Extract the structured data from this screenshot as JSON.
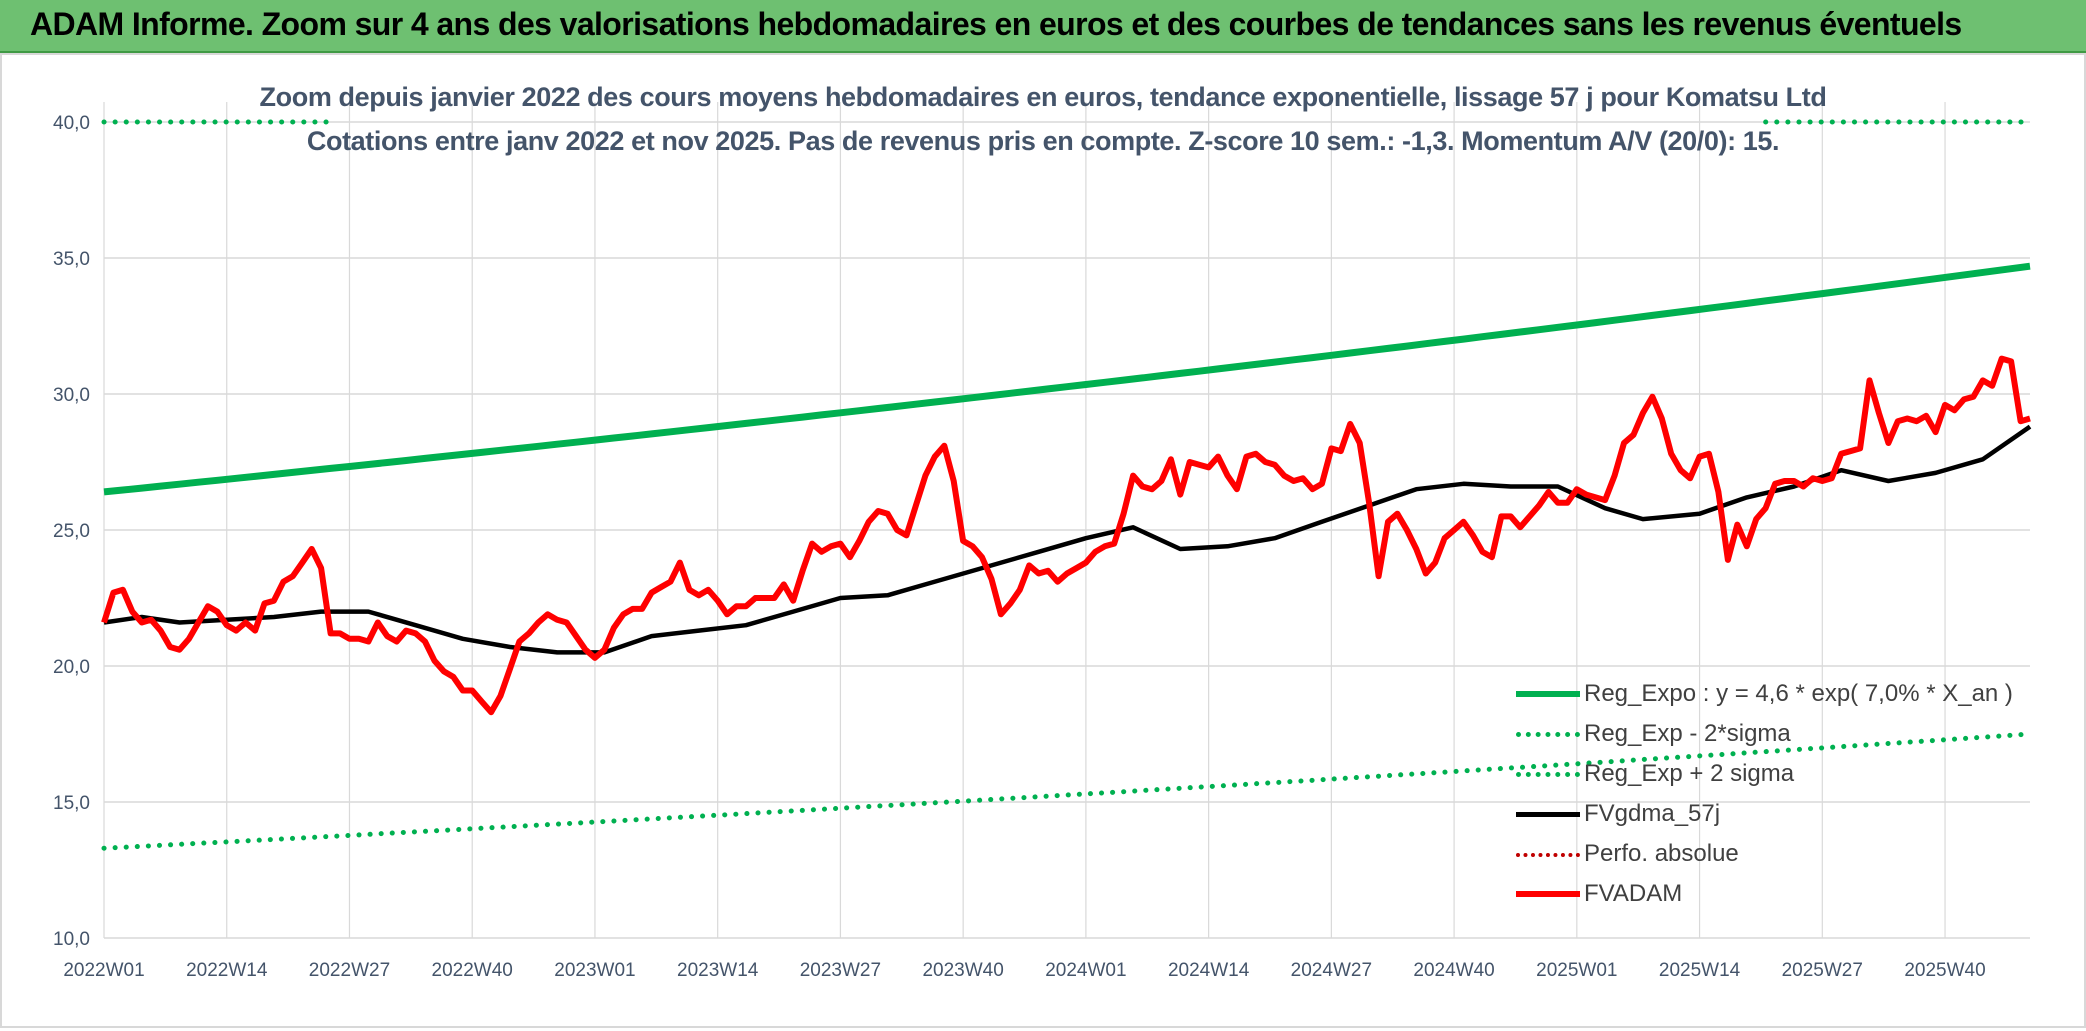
{
  "banner": {
    "title": "ADAM Informe. Zoom sur 4 ans des valorisations hebdomadaires en euros et des courbes de tendances sans les revenus éventuels"
  },
  "colors": {
    "banner_bg": "#6ec071",
    "reg_green": "#00b050",
    "price_red": "#ff0000",
    "fvgdma_black": "#000000",
    "grid": "#d9d9d9",
    "axis_text": "#44546a"
  },
  "chart_data": {
    "type": "line",
    "title": "Zoom depuis janvier 2022 des cours moyens hebdomadaires en euros, tendance exponentielle, lissage 57 j pour Komatsu Ltd",
    "subtitle": "Cotations entre janv 2022 et nov 2025. Pas de revenus pris en compte. Z-score 10 sem.: -1,3. Momentum A/V (20/0): 15.",
    "xlabel": "",
    "ylabel": "",
    "ylim": [
      10,
      40
    ],
    "yticks": [
      "10,0",
      "15,0",
      "20,0",
      "25,0",
      "30,0",
      "35,0",
      "40,0"
    ],
    "x_tick_labels": [
      "2022W01",
      "2022W14",
      "2022W27",
      "2022W40",
      "2023W01",
      "2023W14",
      "2023W27",
      "2023W40",
      "2024W01",
      "2024W14",
      "2024W27",
      "2024W40",
      "2025W01",
      "2025W14",
      "2025W27",
      "2025W40"
    ],
    "week_count": 205,
    "grid": true,
    "legend_position": "bottom-right",
    "series": [
      {
        "name": "Reg_Expo : y = 4,6 * exp( 7,0% *  X_an )",
        "style": "solid",
        "color": "#00b050",
        "week": [
          0,
          204
        ],
        "values": [
          26.4,
          34.7
        ]
      },
      {
        "name": "Reg_Exp - 2*sigma",
        "style": "dotted",
        "color": "#00b050",
        "week": [
          0,
          204
        ],
        "values": [
          13.3,
          17.5
        ]
      },
      {
        "name": "Reg_Exp + 2 sigma",
        "style": "dotted",
        "color": "#00b050",
        "week": [
          0,
          24,
          176,
          204
        ],
        "values": [
          40.0,
          40.0,
          40.0,
          40.0
        ]
      },
      {
        "name": "FVgdma_57j",
        "style": "solid",
        "color": "#000000",
        "week": [
          0,
          4,
          8,
          13,
          18,
          23,
          28,
          33,
          38,
          43,
          48,
          53,
          58,
          63,
          68,
          73,
          78,
          83,
          87,
          93,
          99,
          104,
          109,
          114,
          119,
          124,
          129,
          134,
          139,
          144,
          149,
          154,
          159,
          163,
          169,
          174,
          179,
          184,
          189,
          194,
          199,
          204
        ],
        "values": [
          21.6,
          21.8,
          21.6,
          21.7,
          21.8,
          22.0,
          22.0,
          21.5,
          21.0,
          20.7,
          20.5,
          20.5,
          21.1,
          21.3,
          21.5,
          22.0,
          22.5,
          22.6,
          23.0,
          23.6,
          24.2,
          24.7,
          25.1,
          24.3,
          24.4,
          24.7,
          25.3,
          25.9,
          26.5,
          26.7,
          26.6,
          26.6,
          25.8,
          25.4,
          25.6,
          26.2,
          26.6,
          27.2,
          26.8,
          27.1,
          27.6,
          28.8
        ]
      },
      {
        "name": "Perfo. absolue",
        "style": "dotted",
        "color": "#c00000",
        "week": [],
        "values": []
      },
      {
        "name": "FVADAM",
        "style": "solid",
        "color": "#ff0000",
        "week": [
          0,
          1,
          2,
          3,
          4,
          5,
          6,
          7,
          8,
          9,
          10,
          11,
          12,
          13,
          14,
          15,
          16,
          17,
          18,
          19,
          20,
          21,
          22,
          23,
          24,
          25,
          26,
          27,
          28,
          29,
          30,
          31,
          32,
          33,
          34,
          35,
          36,
          37,
          38,
          39,
          40,
          41,
          42,
          43,
          44,
          45,
          46,
          47,
          48,
          49,
          50,
          51,
          52,
          53,
          54,
          55,
          56,
          57,
          58,
          59,
          60,
          61,
          62,
          63,
          64,
          65,
          66,
          67,
          68,
          69,
          70,
          71,
          72,
          73,
          74,
          75,
          76,
          77,
          78,
          79,
          80,
          81,
          82,
          83,
          84,
          85,
          86,
          87,
          88,
          89,
          90,
          91,
          92,
          93,
          94,
          95,
          96,
          97,
          98,
          99,
          100,
          101,
          102,
          103,
          104,
          105,
          106,
          107,
          108,
          109,
          110,
          111,
          112,
          113,
          114,
          115,
          116,
          117,
          118,
          119,
          120,
          121,
          122,
          123,
          124,
          125,
          126,
          127,
          128,
          129,
          130,
          131,
          132,
          133,
          134,
          135,
          136,
          137,
          138,
          139,
          140,
          141,
          142,
          143,
          144,
          145,
          146,
          147,
          148,
          149,
          150,
          151,
          152,
          153,
          154,
          155,
          156,
          157,
          158,
          159,
          160,
          161,
          162,
          163,
          164,
          165,
          166,
          167,
          168,
          169,
          170,
          171,
          172,
          173,
          174,
          175,
          176,
          177,
          178,
          179,
          180,
          181,
          182,
          183,
          184,
          185,
          186,
          187,
          188,
          189,
          190,
          191,
          192,
          193,
          194,
          195,
          196,
          197,
          198,
          199,
          200,
          201,
          202,
          203,
          204
        ],
        "values": [
          21.6,
          22.7,
          22.8,
          22.0,
          21.6,
          21.7,
          21.3,
          20.7,
          20.6,
          21.0,
          21.6,
          22.2,
          22.0,
          21.5,
          21.3,
          21.6,
          21.3,
          22.3,
          22.4,
          23.1,
          23.3,
          23.8,
          24.3,
          23.6,
          21.2,
          21.2,
          21.0,
          21.0,
          20.9,
          21.6,
          21.1,
          20.9,
          21.3,
          21.2,
          20.9,
          20.2,
          19.8,
          19.6,
          19.1,
          19.1,
          18.7,
          18.3,
          18.9,
          19.9,
          20.9,
          21.2,
          21.6,
          21.9,
          21.7,
          21.6,
          21.1,
          20.6,
          20.3,
          20.6,
          21.4,
          21.9,
          22.1,
          22.1,
          22.7,
          22.9,
          23.1,
          23.8,
          22.8,
          22.6,
          22.8,
          22.4,
          21.9,
          22.2,
          22.2,
          22.5,
          22.5,
          22.5,
          23.0,
          22.4,
          23.5,
          24.5,
          24.2,
          24.4,
          24.5,
          24.0,
          24.6,
          25.3,
          25.7,
          25.6,
          25.0,
          24.8,
          25.9,
          27.0,
          27.7,
          28.1,
          26.8,
          24.6,
          24.4,
          24.0,
          23.2,
          21.9,
          22.3,
          22.8,
          23.7,
          23.4,
          23.5,
          23.1,
          23.4,
          23.6,
          23.8,
          24.2,
          24.4,
          24.5,
          25.6,
          27.0,
          26.6,
          26.5,
          26.8,
          27.6,
          26.3,
          27.5,
          27.4,
          27.3,
          27.7,
          27.0,
          26.5,
          27.7,
          27.8,
          27.5,
          27.4,
          27.0,
          26.8,
          26.9,
          26.5,
          26.7,
          28.0,
          27.9,
          28.9,
          28.2,
          26.0,
          23.3,
          25.3,
          25.6,
          25.0,
          24.3,
          23.4,
          23.8,
          24.7,
          25.0,
          25.3,
          24.8,
          24.2,
          24.0,
          25.5,
          25.5,
          25.1,
          25.5,
          25.9,
          26.4,
          26.0,
          26.0,
          26.5,
          26.3,
          26.2,
          26.1,
          27.0,
          28.2,
          28.5,
          29.3,
          29.9,
          29.1,
          27.8,
          27.2,
          26.9,
          27.7,
          27.8,
          26.4,
          23.9,
          25.2,
          24.4,
          25.4,
          25.8,
          26.7,
          26.8,
          26.8,
          26.6,
          26.9,
          26.8,
          26.9,
          27.8,
          27.9,
          28.0,
          30.5,
          29.3,
          28.2,
          29.0,
          29.1,
          29.0,
          29.2,
          28.6,
          29.6,
          29.4,
          29.8,
          29.9,
          30.5,
          30.3,
          31.3,
          31.2,
          29.0,
          29.1,
          28.1,
          28.4
        ]
      }
    ]
  }
}
